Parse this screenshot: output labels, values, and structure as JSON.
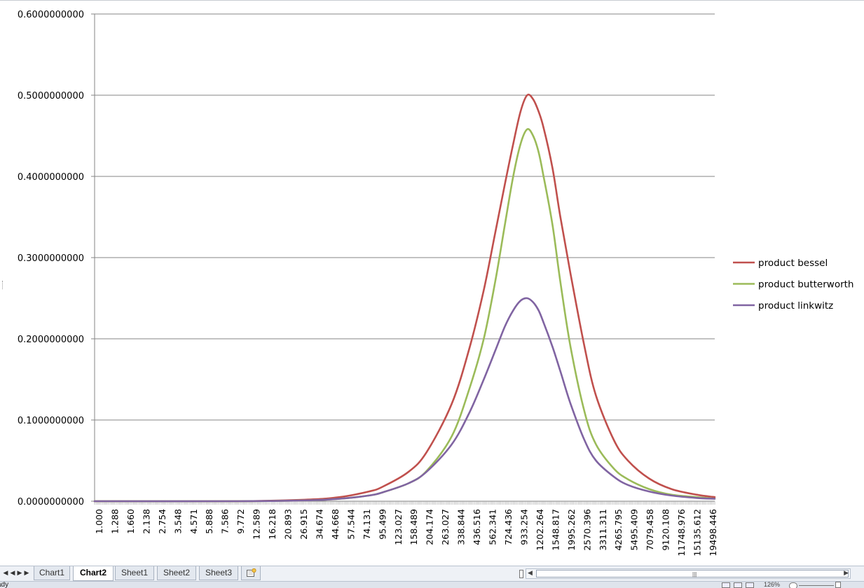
{
  "chart_data": {
    "type": "line",
    "title": "",
    "xlabel": "",
    "ylabel": "",
    "ylim": [
      0,
      0.6
    ],
    "ytick_labels": [
      "0.0000000000",
      "0.1000000000",
      "0.2000000000",
      "0.3000000000",
      "0.4000000000",
      "0.5000000000",
      "0.6000000000"
    ],
    "x_tick_labels": [
      "1.000",
      "1.288",
      "1.660",
      "2.138",
      "2.754",
      "3.548",
      "4.571",
      "5.888",
      "7.586",
      "9.772",
      "12.589",
      "16.218",
      "20.893",
      "26.915",
      "34.674",
      "44.668",
      "57.544",
      "74.131",
      "95.499",
      "123.027",
      "158.489",
      "204.174",
      "263.027",
      "338.844",
      "436.516",
      "562.341",
      "724.436",
      "933.254",
      "1202.264",
      "1548.817",
      "1995.262",
      "2570.396",
      "3311.311",
      "4265.795",
      "5495.409",
      "7079.458",
      "9120.108",
      "11748.976",
      "15135.612",
      "19498.446"
    ],
    "x_scale": "log",
    "x_range_hz": [
      1.0,
      20000.0
    ],
    "grid": "horizontal",
    "legend_position": "right",
    "series": [
      {
        "name": "product bessel",
        "color": "#c0504d",
        "x": [
          1,
          10,
          30,
          50,
          80,
          100,
          150,
          200,
          300,
          400,
          500,
          600,
          700,
          800,
          900,
          1000,
          1100,
          1200,
          1300,
          1500,
          1700,
          2000,
          2500,
          3000,
          4000,
          5000,
          7000,
          10000,
          15000,
          20000
        ],
        "y": [
          0.0,
          0.0,
          0.002,
          0.005,
          0.012,
          0.018,
          0.036,
          0.06,
          0.12,
          0.19,
          0.26,
          0.33,
          0.39,
          0.44,
          0.48,
          0.5,
          0.495,
          0.48,
          0.46,
          0.41,
          0.35,
          0.28,
          0.19,
          0.13,
          0.075,
          0.05,
          0.028,
          0.015,
          0.008,
          0.005
        ]
      },
      {
        "name": "product butterworth",
        "color": "#9bbb59",
        "x": [
          1,
          10,
          30,
          50,
          80,
          100,
          150,
          200,
          300,
          400,
          500,
          600,
          700,
          800,
          900,
          1000,
          1100,
          1200,
          1300,
          1500,
          1700,
          2000,
          2500,
          3000,
          4000,
          5000,
          7000,
          10000,
          15000,
          20000
        ],
        "y": [
          0.0,
          0.0,
          0.001,
          0.003,
          0.007,
          0.011,
          0.022,
          0.037,
          0.08,
          0.14,
          0.2,
          0.27,
          0.34,
          0.4,
          0.44,
          0.458,
          0.45,
          0.43,
          0.4,
          0.34,
          0.27,
          0.19,
          0.11,
          0.07,
          0.04,
          0.027,
          0.015,
          0.008,
          0.005,
          0.003
        ]
      },
      {
        "name": "product linkwitz",
        "color": "#8064a2",
        "x": [
          1,
          10,
          30,
          50,
          80,
          100,
          150,
          200,
          300,
          400,
          500,
          600,
          700,
          800,
          900,
          1000,
          1100,
          1200,
          1300,
          1500,
          1700,
          2000,
          2500,
          3000,
          4000,
          5000,
          7000,
          10000,
          15000,
          20000
        ],
        "y": [
          0.0,
          0.0,
          0.001,
          0.003,
          0.007,
          0.011,
          0.022,
          0.036,
          0.07,
          0.11,
          0.15,
          0.185,
          0.215,
          0.235,
          0.247,
          0.25,
          0.245,
          0.235,
          0.22,
          0.19,
          0.16,
          0.12,
          0.075,
          0.05,
          0.03,
          0.02,
          0.012,
          0.007,
          0.004,
          0.003
        ]
      }
    ]
  },
  "sheet_tabs": [
    "Chart1",
    "Chart2",
    "Sheet1",
    "Sheet2",
    "Sheet3"
  ],
  "active_tab": "Chart2",
  "status": {
    "text": "ady",
    "zoom": "126%"
  },
  "colors": {
    "gridline": "#868686",
    "axis": "#868686",
    "tabbar": "#eef1f6"
  }
}
